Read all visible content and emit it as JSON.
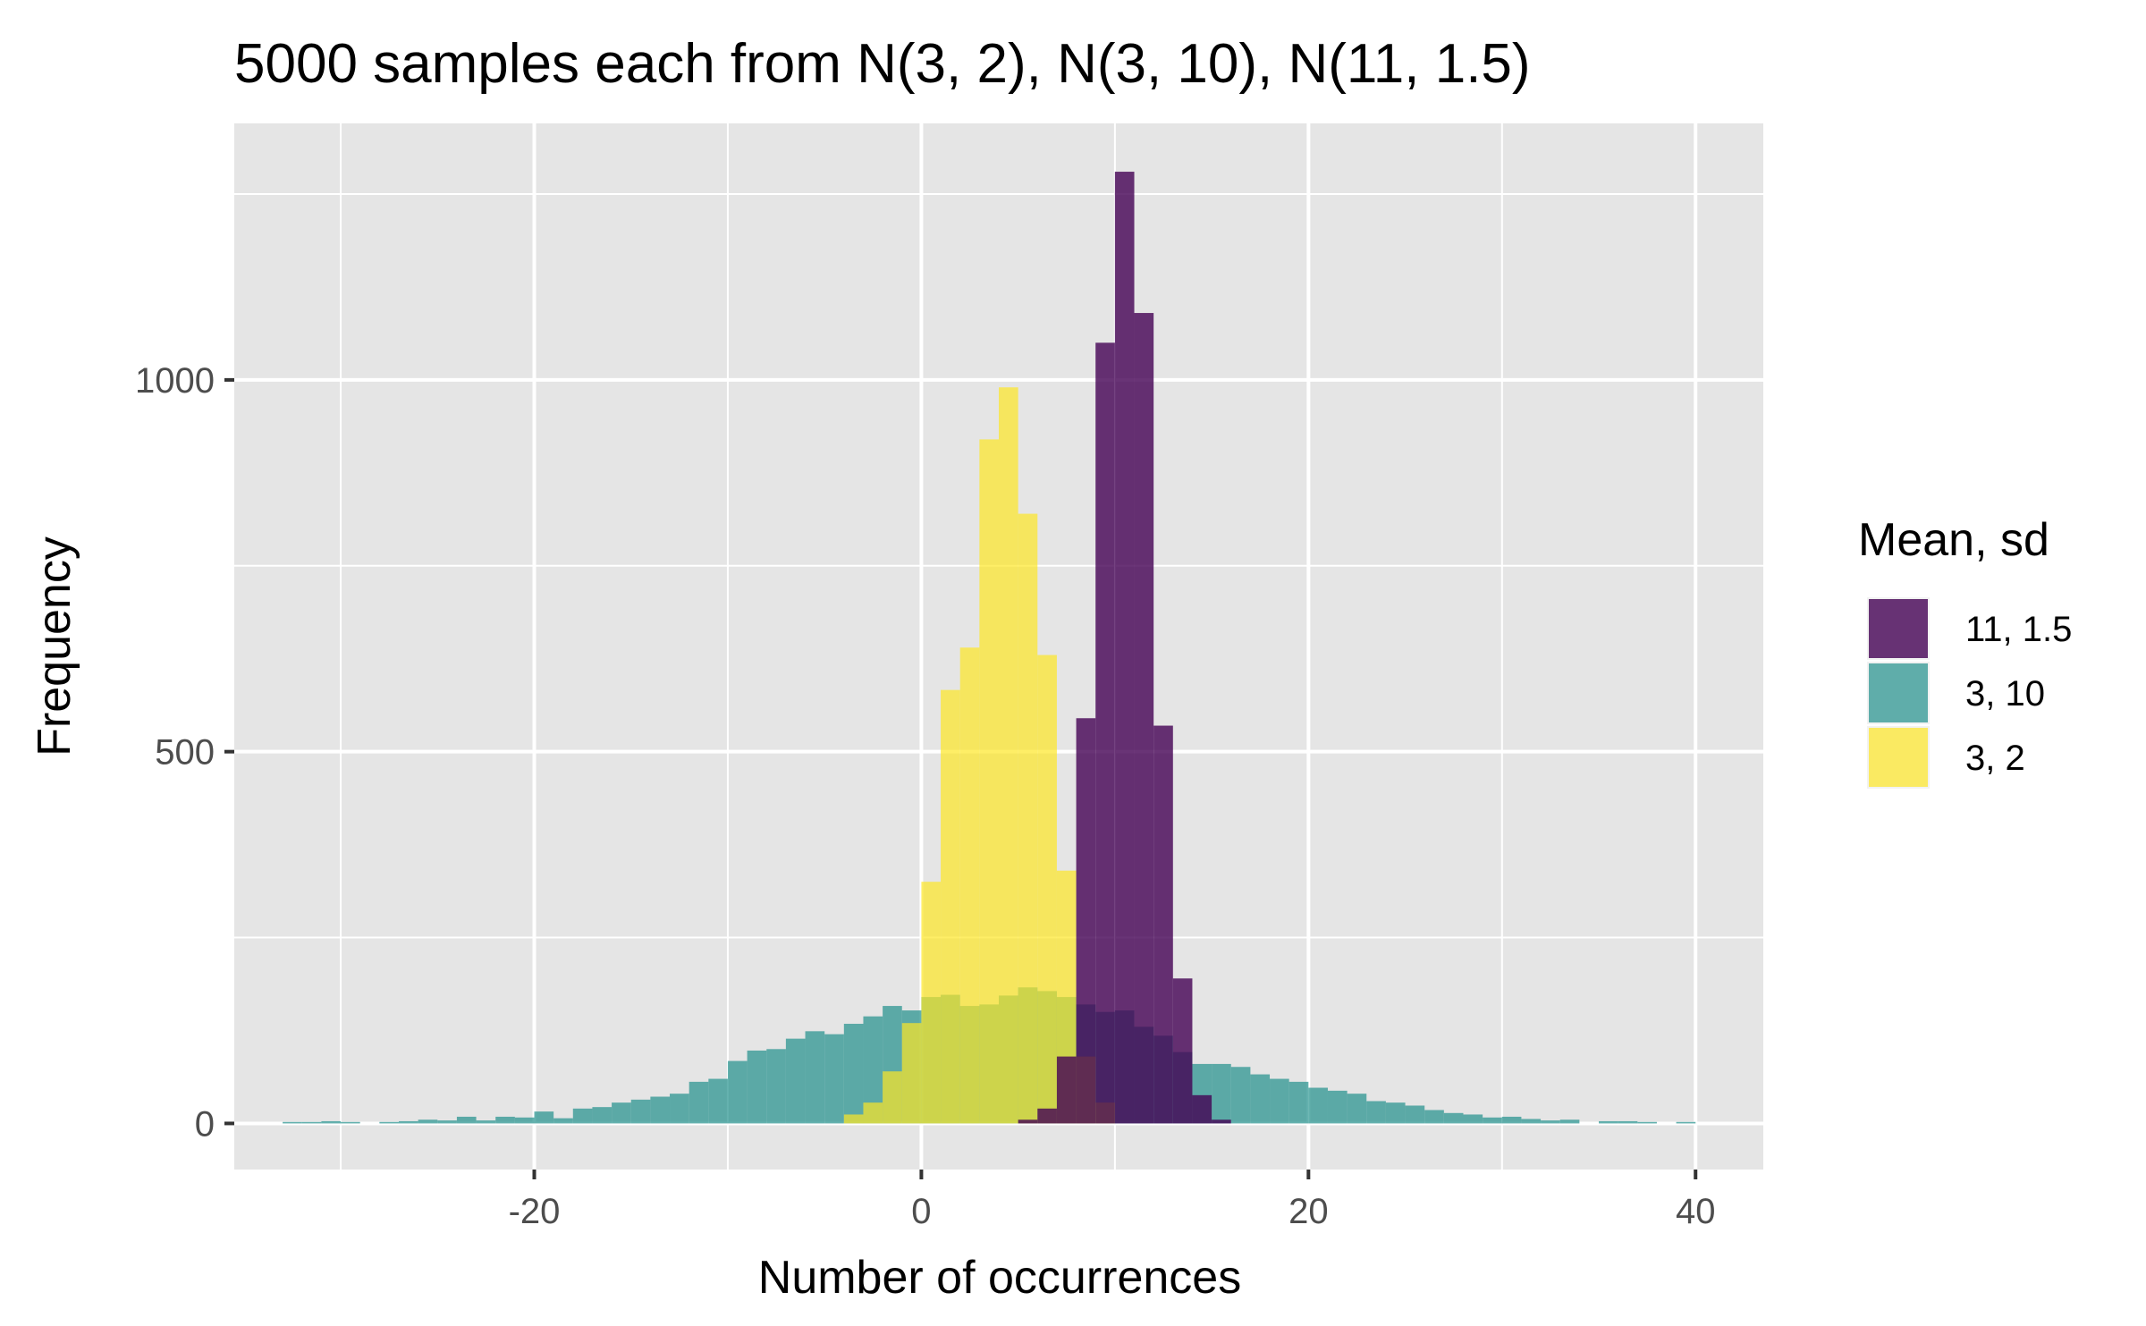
{
  "chart_data": {
    "type": "bar",
    "subtype": "overlapping-histogram",
    "title": "5000 samples each from N(3, 2), N(3, 10), N(11, 1.5)",
    "xlabel": "Number of occurrences",
    "ylabel": "Frequency",
    "xlim": [
      -35.5,
      43.5
    ],
    "ylim": [
      -62,
      1345
    ],
    "x_ticks": [
      -20,
      0,
      20,
      40
    ],
    "x_tick_labels": [
      "-20",
      "0",
      "20",
      "40"
    ],
    "y_ticks": [
      0,
      500,
      1000
    ],
    "y_tick_labels": [
      "0",
      "500",
      "1000"
    ],
    "grid": true,
    "background": "#e5e5e5",
    "grid_color": "#ffffff",
    "bin_width": 1,
    "legend": {
      "title": "Mean, sd",
      "position": "right"
    },
    "series": [
      {
        "name": "3, 10",
        "color": "#21908c",
        "opacity": 0.7,
        "bins": [
          [
            -32.5,
            2
          ],
          [
            -31.5,
            2
          ],
          [
            -30.5,
            3
          ],
          [
            -29.5,
            2
          ],
          [
            -27.5,
            2
          ],
          [
            -26.5,
            3
          ],
          [
            -25.5,
            5
          ],
          [
            -24.5,
            4
          ],
          [
            -23.5,
            9
          ],
          [
            -22.5,
            4
          ],
          [
            -21.5,
            9
          ],
          [
            -20.5,
            8
          ],
          [
            -19.5,
            16
          ],
          [
            -18.5,
            7
          ],
          [
            -17.5,
            20
          ],
          [
            -16.5,
            22
          ],
          [
            -15.5,
            28
          ],
          [
            -14.5,
            32
          ],
          [
            -13.5,
            36
          ],
          [
            -12.5,
            40
          ],
          [
            -11.5,
            56
          ],
          [
            -10.5,
            60
          ],
          [
            -9.5,
            84
          ],
          [
            -8.5,
            98
          ],
          [
            -7.5,
            100
          ],
          [
            -6.5,
            114
          ],
          [
            -5.5,
            124
          ],
          [
            -4.5,
            120
          ],
          [
            -3.5,
            134
          ],
          [
            -2.5,
            144
          ],
          [
            -1.5,
            158
          ],
          [
            -0.5,
            152
          ],
          [
            0.5,
            170
          ],
          [
            1.5,
            173
          ],
          [
            2.5,
            158
          ],
          [
            3.5,
            160
          ],
          [
            4.5,
            172
          ],
          [
            5.5,
            183
          ],
          [
            6.5,
            178
          ],
          [
            7.5,
            170
          ],
          [
            8.5,
            160
          ],
          [
            9.5,
            150
          ],
          [
            10.5,
            152
          ],
          [
            11.5,
            130
          ],
          [
            12.5,
            118
          ],
          [
            13.5,
            96
          ],
          [
            14.5,
            80
          ],
          [
            15.5,
            80
          ],
          [
            16.5,
            76
          ],
          [
            17.5,
            66
          ],
          [
            18.5,
            60
          ],
          [
            19.5,
            56
          ],
          [
            20.5,
            48
          ],
          [
            21.5,
            44
          ],
          [
            22.5,
            40
          ],
          [
            23.5,
            30
          ],
          [
            24.5,
            28
          ],
          [
            25.5,
            24
          ],
          [
            26.5,
            18
          ],
          [
            27.5,
            14
          ],
          [
            28.5,
            12
          ],
          [
            29.5,
            8
          ],
          [
            30.5,
            9
          ],
          [
            31.5,
            6
          ],
          [
            32.5,
            4
          ],
          [
            33.5,
            5
          ],
          [
            35.5,
            3
          ],
          [
            36.5,
            3
          ],
          [
            37.5,
            2
          ],
          [
            39.5,
            2
          ]
        ]
      },
      {
        "name": "3, 2",
        "color": "#fde725",
        "opacity": 0.7,
        "bins": [
          [
            -3.5,
            12
          ],
          [
            -2.5,
            28
          ],
          [
            -1.5,
            70
          ],
          [
            -0.5,
            135
          ],
          [
            0.5,
            325
          ],
          [
            1.5,
            583
          ],
          [
            2.5,
            640
          ],
          [
            3.5,
            920
          ],
          [
            4.5,
            990
          ],
          [
            5.5,
            820
          ],
          [
            6.5,
            630
          ],
          [
            7.5,
            340
          ],
          [
            8.5,
            90
          ],
          [
            9.5,
            28
          ]
        ]
      },
      {
        "name": "11, 1.5",
        "color": "#440154",
        "opacity": 0.8,
        "bins": [
          [
            5.5,
            5
          ],
          [
            6.5,
            20
          ],
          [
            7.5,
            90
          ],
          [
            8.5,
            545
          ],
          [
            9.5,
            1050
          ],
          [
            10.5,
            1280
          ],
          [
            11.5,
            1090
          ],
          [
            12.5,
            535
          ],
          [
            13.5,
            195
          ],
          [
            14.5,
            38
          ],
          [
            15.5,
            5
          ]
        ]
      }
    ]
  }
}
